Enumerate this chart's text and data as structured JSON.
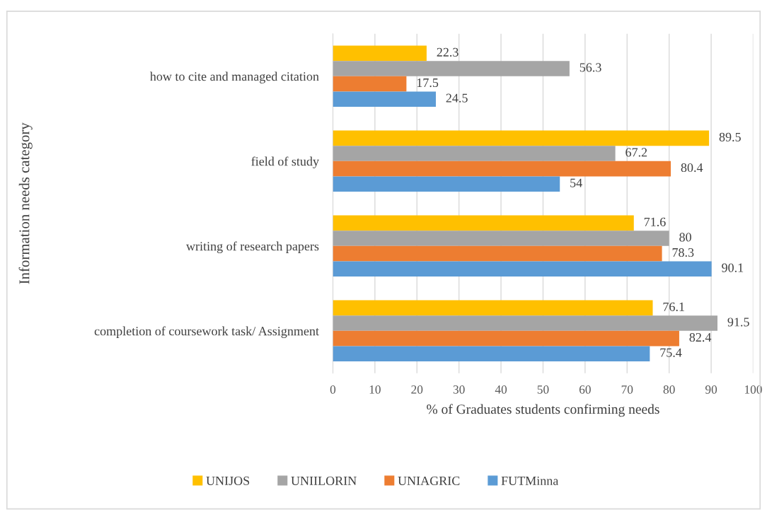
{
  "chart_data": {
    "type": "bar",
    "orientation": "horizontal",
    "xlabel": "% of Graduates students confirming needs",
    "ylabel": "Information needs category",
    "categories": [
      "how to cite and managed citation",
      "field of study",
      "writing of research papers",
      "completion of coursework task/ Assignment"
    ],
    "series": [
      {
        "name": "UNIJOS",
        "color": "#ffc000",
        "values": [
          22.3,
          89.5,
          71.6,
          76.1
        ]
      },
      {
        "name": "UNIILORIN",
        "color": "#a5a5a5",
        "values": [
          56.3,
          67.2,
          80,
          91.5
        ]
      },
      {
        "name": "UNIAGRIC",
        "color": "#ed7d31",
        "values": [
          17.5,
          80.4,
          78.3,
          82.4
        ]
      },
      {
        "name": "FUTMinna",
        "color": "#5b9bd5",
        "values": [
          24.5,
          54,
          90.1,
          75.4
        ]
      }
    ],
    "xlim": [
      0,
      100
    ],
    "xticks": [
      0,
      10,
      20,
      30,
      40,
      50,
      60,
      70,
      80,
      90,
      100
    ],
    "grid": "x",
    "legend": "bottom",
    "data_labels": true
  }
}
